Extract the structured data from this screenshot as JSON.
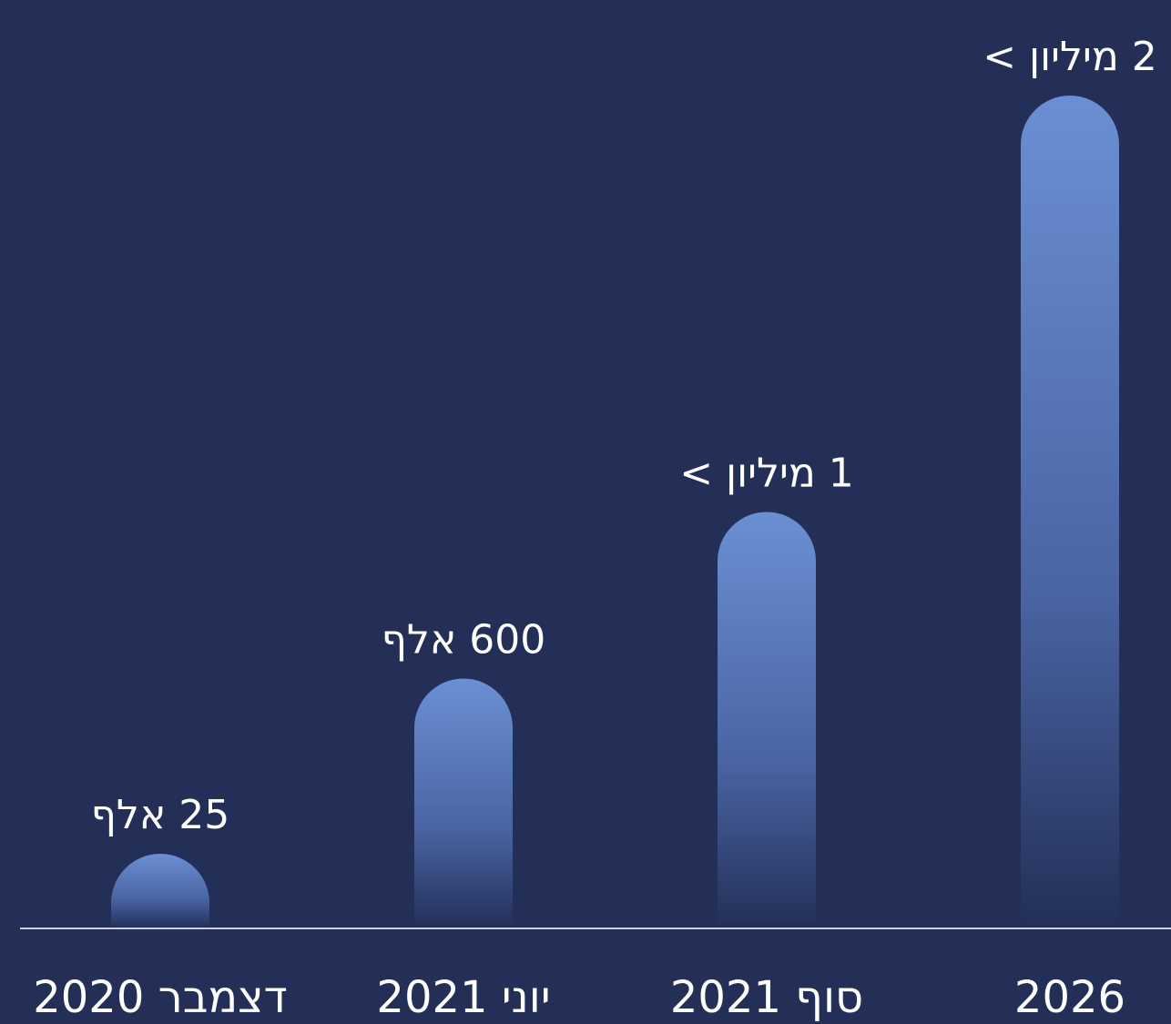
{
  "chart_data": {
    "type": "bar",
    "categories": [
      "דצמבר 2020",
      "יוני 2021",
      "סוף 2021",
      "2026"
    ],
    "values": [
      25000,
      600000,
      1000000,
      2000000
    ],
    "value_labels": [
      "25 אלף",
      "600 אלף",
      "1 מיליון >",
      "2 מיליון >"
    ],
    "ylim": [
      0,
      2000000
    ],
    "grid": false,
    "legend": "none",
    "title": "",
    "xlabel": "",
    "ylabel": ""
  },
  "colors": {
    "background": "#232f57",
    "bar_top": "#6b8fd4",
    "bar_bottom": "#232f57",
    "baseline": "#c9cfdc",
    "text": "#ffffff"
  }
}
